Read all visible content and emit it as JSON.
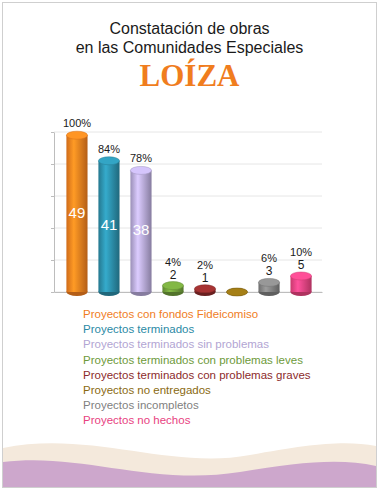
{
  "chart_data": {
    "type": "bar",
    "subtitle": [
      "Constatación de obras",
      "en las Comunidades Especiales"
    ],
    "title": "LOÍZA",
    "categories": [
      "Proyectos con fondos Fideicomiso",
      "Proyectos terminados",
      "Proyectos terminados sin problemas",
      "Proyectos terminados con problemas leves",
      "Proyectos terminados con problemas graves",
      "Proyectos no entregados",
      "Proyectos incompletos",
      "Proyectos no hechos"
    ],
    "values": [
      49,
      41,
      38,
      2,
      1,
      0,
      3,
      5
    ],
    "value_labels": [
      "49",
      "41",
      "38",
      "2",
      "1",
      null,
      "3",
      "5"
    ],
    "percentages": [
      100,
      84,
      78,
      4,
      2,
      null,
      6,
      10
    ],
    "percentage_labels": [
      "100%",
      "84%",
      "78%",
      "4%",
      "2%",
      null,
      "6%",
      "10%"
    ],
    "colors": [
      "#f07d1e",
      "#2b8aa5",
      "#b2a5d3",
      "#6e9a3a",
      "#8c2b2b",
      "#8a6a12",
      "#7f7f7f",
      "#e8427f"
    ],
    "ylim": [
      0,
      50
    ],
    "yticks": [
      0,
      10,
      20,
      30,
      40,
      50
    ],
    "grid": true,
    "tick_labels": false,
    "data_labels": true,
    "legend": "bottom"
  }
}
